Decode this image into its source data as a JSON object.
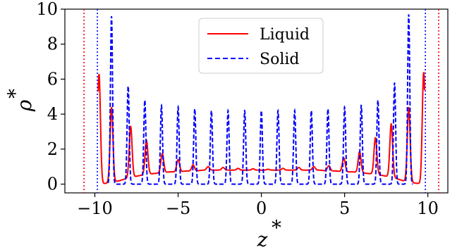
{
  "chart_data": {
    "type": "line",
    "xlabel": "z",
    "xlabel_sup": "*",
    "ylabel": "ρ",
    "ylabel_sup": "*",
    "xlim": [
      -11.8,
      11.2
    ],
    "ylim": [
      -0.5,
      10.0
    ],
    "xticks": [
      -10,
      -5,
      0,
      5,
      10
    ],
    "xtick_labels": [
      "−10",
      "−5",
      "0",
      "5",
      "10"
    ],
    "yticks": [
      0,
      2,
      4,
      6,
      8,
      10
    ],
    "ytick_labels": [
      "0",
      "2",
      "4",
      "6",
      "8",
      "10"
    ],
    "grid": false,
    "legend_position": "top-center",
    "series": [
      {
        "name": "Liquid",
        "color": "#ff0000",
        "style": "solid",
        "baseline_x": [
          -9.8,
          -9.3,
          -9.0,
          -8.5,
          -8.0,
          -7.5,
          -7.0,
          -6.5,
          -6.0,
          -5.5,
          -5.0,
          -4.5,
          -4.0,
          -3.5,
          -3.0,
          -2.5,
          -2.0,
          -1.5,
          -1.0,
          -0.5,
          0.0,
          0.5,
          1.0,
          1.5,
          2.0,
          2.5,
          3.0,
          3.5,
          4.0,
          4.5,
          5.0,
          5.5,
          6.0,
          6.5,
          7.0,
          7.5,
          8.0,
          8.5,
          9.0,
          9.3,
          9.8
        ],
        "baseline_y": [
          0.0,
          0.05,
          0.1,
          0.2,
          0.35,
          0.45,
          0.55,
          0.6,
          0.65,
          0.7,
          0.7,
          0.75,
          0.75,
          0.8,
          0.8,
          0.8,
          0.8,
          0.8,
          0.8,
          0.8,
          0.8,
          0.8,
          0.8,
          0.8,
          0.8,
          0.8,
          0.8,
          0.8,
          0.75,
          0.75,
          0.7,
          0.7,
          0.65,
          0.6,
          0.55,
          0.45,
          0.35,
          0.2,
          0.1,
          0.05,
          0.0
        ],
        "peaks_x": [
          -9.75,
          -9.0,
          -7.85,
          -6.9,
          -5.95,
          -5.0,
          -4.1,
          -3.2,
          -2.3,
          -1.4,
          -0.5,
          0.4,
          1.3,
          2.25,
          3.15,
          4.05,
          4.95,
          5.9,
          6.85,
          7.8,
          8.85,
          9.75
        ],
        "peaks_y": [
          6.3,
          4.4,
          3.3,
          2.5,
          1.75,
          1.4,
          1.1,
          1.0,
          0.95,
          0.9,
          0.88,
          0.85,
          0.9,
          0.95,
          1.0,
          1.05,
          1.5,
          1.85,
          2.65,
          3.45,
          4.4,
          6.4
        ],
        "peak_width": 0.12
      },
      {
        "name": "Solid",
        "color": "#0000ff",
        "style": "dashed",
        "peaks_x": [
          -9.0,
          -8.0,
          -7.0,
          -6.0,
          -5.0,
          -4.0,
          -3.0,
          -2.0,
          -1.0,
          0.0,
          1.0,
          2.0,
          3.0,
          4.0,
          5.0,
          6.0,
          7.0,
          8.0,
          8.85
        ],
        "peaks_y": [
          9.6,
          5.6,
          4.8,
          4.5,
          4.4,
          4.3,
          4.2,
          4.2,
          4.2,
          4.2,
          4.2,
          4.2,
          4.2,
          4.3,
          4.4,
          4.5,
          4.8,
          5.8,
          9.7
        ],
        "peak_width": 0.09,
        "range": [
          -9.2,
          9.1
        ]
      }
    ],
    "vlines": [
      {
        "x": -10.65,
        "color": "#ff0000",
        "style": "dotted"
      },
      {
        "x": -9.85,
        "color": "#0000ff",
        "style": "dotted"
      },
      {
        "x": 9.85,
        "color": "#0000ff",
        "style": "dotted"
      },
      {
        "x": 10.65,
        "color": "#ff0000",
        "style": "dotted"
      }
    ]
  }
}
